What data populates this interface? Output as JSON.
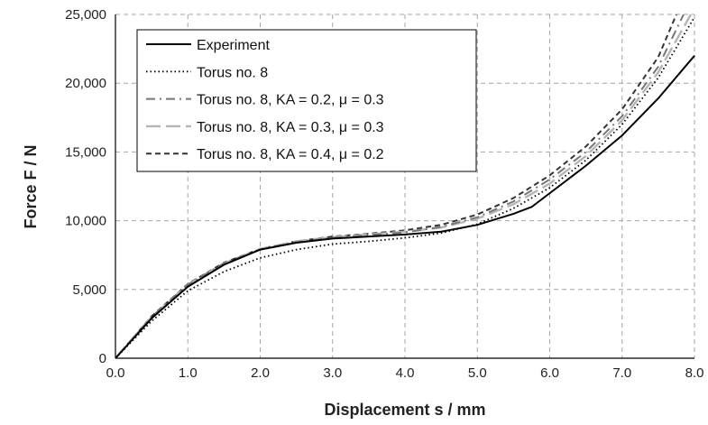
{
  "chart_data": {
    "type": "line",
    "xlabel": "Displacement s / mm",
    "ylabel": "Force F / N",
    "xlim": [
      0,
      8
    ],
    "ylim": [
      0,
      25000
    ],
    "grid": true,
    "legend_position": "top-left",
    "x_ticks": [
      "0.0",
      "1.0",
      "2.0",
      "3.0",
      "4.0",
      "5.0",
      "6.0",
      "7.0",
      "8.0"
    ],
    "y_ticks": [
      "0",
      "5,000",
      "10,000",
      "15,000",
      "20,000",
      "25,000"
    ],
    "x_tick_values": [
      0,
      1,
      2,
      3,
      4,
      5,
      6,
      7,
      8
    ],
    "y_tick_values": [
      0,
      5000,
      10000,
      15000,
      20000,
      25000
    ],
    "series": [
      {
        "name": "Experiment",
        "style": "solid",
        "color": "#000000",
        "points": [
          [
            0,
            0
          ],
          [
            0.5,
            2900
          ],
          [
            1.0,
            5200
          ],
          [
            1.5,
            6800
          ],
          [
            2.0,
            7900
          ],
          [
            2.5,
            8400
          ],
          [
            3.0,
            8700
          ],
          [
            3.5,
            8850
          ],
          [
            4.0,
            9000
          ],
          [
            4.5,
            9200
          ],
          [
            5.0,
            9700
          ],
          [
            5.5,
            10500
          ],
          [
            5.75,
            11000
          ],
          [
            6.0,
            12000
          ],
          [
            6.5,
            14000
          ],
          [
            7.0,
            16200
          ],
          [
            7.5,
            18900
          ],
          [
            8.0,
            22000
          ]
        ]
      },
      {
        "name": "Torus no. 8",
        "style": "dotted",
        "color": "#000000",
        "points": [
          [
            0,
            0
          ],
          [
            0.5,
            2700
          ],
          [
            1.0,
            4900
          ],
          [
            1.5,
            6300
          ],
          [
            2.0,
            7300
          ],
          [
            2.5,
            7900
          ],
          [
            3.0,
            8300
          ],
          [
            3.5,
            8500
          ],
          [
            4.0,
            8750
          ],
          [
            4.5,
            9100
          ],
          [
            5.0,
            9750
          ],
          [
            5.5,
            10900
          ],
          [
            6.0,
            12400
          ],
          [
            6.5,
            14400
          ],
          [
            7.0,
            17000
          ],
          [
            7.5,
            20400
          ],
          [
            8.0,
            24800
          ]
        ]
      },
      {
        "name": "Torus no. 8, KA = 0.2, μ = 0.3",
        "style": "dashdot",
        "color": "#777777",
        "points": [
          [
            0,
            0
          ],
          [
            0.5,
            3000
          ],
          [
            1.0,
            5350
          ],
          [
            1.5,
            6900
          ],
          [
            2.0,
            7900
          ],
          [
            2.5,
            8450
          ],
          [
            3.0,
            8750
          ],
          [
            3.5,
            8950
          ],
          [
            4.0,
            9150
          ],
          [
            4.5,
            9550
          ],
          [
            5.0,
            10250
          ],
          [
            5.5,
            11400
          ],
          [
            6.0,
            13000
          ],
          [
            6.5,
            15000
          ],
          [
            7.0,
            17600
          ],
          [
            7.5,
            21200
          ],
          [
            7.85,
            25000
          ]
        ]
      },
      {
        "name": "Torus no. 8, KA = 0.3, μ = 0.3",
        "style": "longdash",
        "color": "#b5b5b5",
        "points": [
          [
            0,
            0
          ],
          [
            0.5,
            3000
          ],
          [
            1.0,
            5350
          ],
          [
            1.5,
            6900
          ],
          [
            2.0,
            7950
          ],
          [
            2.5,
            8500
          ],
          [
            3.0,
            8800
          ],
          [
            3.5,
            9000
          ],
          [
            4.0,
            9200
          ],
          [
            4.5,
            9500
          ],
          [
            5.0,
            10150
          ],
          [
            5.5,
            11200
          ],
          [
            6.0,
            12700
          ],
          [
            6.5,
            14700
          ],
          [
            7.0,
            17300
          ],
          [
            7.5,
            20800
          ],
          [
            7.95,
            25000
          ]
        ]
      },
      {
        "name": "Torus no. 8, KA = 0.4, μ = 0.2",
        "style": "dashed",
        "color": "#333333",
        "points": [
          [
            0,
            0
          ],
          [
            0.5,
            3050
          ],
          [
            1.0,
            5400
          ],
          [
            1.5,
            6950
          ],
          [
            2.0,
            7950
          ],
          [
            2.5,
            8500
          ],
          [
            3.0,
            8850
          ],
          [
            3.5,
            9050
          ],
          [
            4.0,
            9300
          ],
          [
            4.5,
            9700
          ],
          [
            5.0,
            10450
          ],
          [
            5.5,
            11650
          ],
          [
            6.0,
            13300
          ],
          [
            6.5,
            15400
          ],
          [
            7.0,
            18100
          ],
          [
            7.5,
            21900
          ],
          [
            7.75,
            25000
          ]
        ]
      }
    ]
  }
}
